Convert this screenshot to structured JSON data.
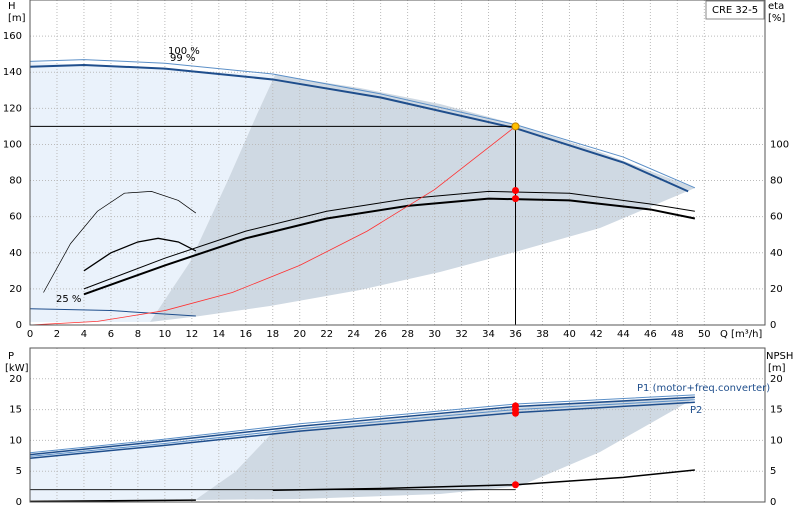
{
  "model": "CRE 32-5",
  "chart_data": [
    {
      "type": "line",
      "y_label": "H",
      "y_unit": "[m]",
      "y2_label": "eta",
      "y2_unit": "[%]",
      "x_label": "Q [m³/h]",
      "xlim": [
        0,
        54.5
      ],
      "ylim": [
        0,
        180
      ],
      "y2lim": [
        0,
        180
      ],
      "xticks": [
        0,
        2,
        4,
        6,
        8,
        10,
        12,
        14,
        16,
        18,
        20,
        22,
        24,
        26,
        28,
        30,
        32,
        34,
        36,
        38,
        40,
        42,
        44,
        46,
        48,
        50
      ],
      "yticks": [
        0,
        20,
        40,
        60,
        80,
        100,
        120,
        140,
        160
      ],
      "y2ticks": [
        0,
        20,
        40,
        60,
        80,
        100
      ],
      "grid": true,
      "annotations": [
        "100 %",
        "99 %",
        "25 %"
      ],
      "series": [
        {
          "color": "#5b8fc7",
          "width": 1,
          "x": [
            0,
            4,
            10,
            18,
            26,
            36,
            44,
            49.3
          ],
          "values": [
            146,
            147,
            145,
            139,
            128,
            111,
            93,
            76
          ]
        },
        {
          "color": "#1f4e8c",
          "width": 2,
          "x": [
            0,
            4,
            10,
            18,
            26,
            36,
            44,
            48.8
          ],
          "values": [
            143,
            144,
            142,
            136,
            126,
            109,
            90,
            74
          ]
        },
        {
          "color": "#000000",
          "width": 1,
          "x": [
            4,
            10,
            16,
            22,
            28,
            34,
            40,
            46,
            49.3
          ],
          "values": [
            20,
            37,
            52,
            63,
            70,
            74,
            73,
            67,
            63
          ]
        },
        {
          "color": "#000000",
          "width": 2,
          "x": [
            4,
            10,
            16,
            22,
            28,
            34,
            40,
            46,
            49.3
          ],
          "values": [
            17,
            33,
            48,
            59,
            66,
            70,
            69,
            64,
            59
          ]
        },
        {
          "color": "#000000",
          "width": 0.7,
          "x": [
            1,
            3,
            5,
            7,
            9,
            11,
            12.3
          ],
          "values": [
            18,
            45,
            63,
            73,
            74,
            69,
            62
          ]
        },
        {
          "color": "#000000",
          "width": 1.3,
          "x": [
            4,
            6,
            8,
            9.5,
            11,
            12.3
          ],
          "values": [
            30,
            40,
            46,
            48,
            46,
            41
          ]
        },
        {
          "color": "#1f4e8c",
          "width": 1,
          "x": [
            0,
            6,
            12.3
          ],
          "values": [
            9,
            8,
            5
          ]
        },
        {
          "color": "#ff3030",
          "width": 0.8,
          "x": [
            0,
            5,
            10,
            15,
            20,
            25,
            30,
            36
          ],
          "values": [
            0,
            2,
            8,
            18,
            33,
            52,
            75,
            110
          ]
        },
        {
          "color": "#000000",
          "width": 1,
          "x": [
            0,
            36,
            36
          ],
          "values": [
            110,
            110,
            0
          ]
        }
      ],
      "points": [
        {
          "x": 36,
          "y": 110,
          "color": "#ffc000"
        },
        {
          "x": 36,
          "y": 74.5,
          "color": "#ff0000"
        },
        {
          "x": 36,
          "y": 70,
          "color": "#ff0000"
        }
      ]
    },
    {
      "type": "line",
      "y_label": "P",
      "y_unit": "[kW]",
      "y2_label": "NPSH",
      "y2_unit": "[m]",
      "xlim": [
        0,
        54.5
      ],
      "ylim": [
        0,
        25
      ],
      "y2lim": [
        0,
        25
      ],
      "yticks": [
        0,
        5,
        10,
        15,
        20
      ],
      "y2ticks": [
        0,
        5,
        10,
        15,
        20
      ],
      "grid": true,
      "annotations": [
        "P1 (motor+freq.converter)",
        "P2"
      ],
      "series": [
        {
          "color": "#5b8fc7",
          "width": 1,
          "x": [
            0,
            10,
            20,
            36,
            49.3
          ],
          "values": [
            8.0,
            10.2,
            12.7,
            15.9,
            17.4
          ]
        },
        {
          "color": "#1f4e8c",
          "width": 1.5,
          "x": [
            0,
            10,
            20,
            36,
            49.3
          ],
          "values": [
            7.7,
            9.9,
            12.3,
            15.5,
            17.0
          ]
        },
        {
          "color": "#5b8fc7",
          "width": 1,
          "x": [
            0,
            10,
            20,
            36,
            49.3
          ],
          "values": [
            7.4,
            9.5,
            11.9,
            15.0,
            16.6
          ]
        },
        {
          "color": "#1f4e8c",
          "width": 1.5,
          "x": [
            0,
            10,
            20,
            36,
            49.3
          ],
          "values": [
            7.1,
            9.2,
            11.5,
            14.5,
            16.2
          ]
        },
        {
          "color": "#000000",
          "width": 1.5,
          "x": [
            0,
            6,
            12.3
          ],
          "values": [
            0.1,
            0.2,
            0.3
          ]
        },
        {
          "color": "#000000",
          "width": 1.5,
          "x": [
            18,
            26,
            36,
            44,
            49.3
          ],
          "values": [
            1.9,
            2.2,
            2.8,
            4.0,
            5.2
          ]
        },
        {
          "color": "#000000",
          "width": 0.8,
          "x": [
            0,
            36
          ],
          "values": [
            2,
            2
          ]
        }
      ],
      "points": [
        {
          "x": 36,
          "y": 15.6,
          "color": "#ff0000"
        },
        {
          "x": 36,
          "y": 15.0,
          "color": "#ff0000"
        },
        {
          "x": 36,
          "y": 14.4,
          "color": "#ff0000"
        },
        {
          "x": 36,
          "y": 2.8,
          "color": "#ff0000"
        }
      ]
    }
  ]
}
